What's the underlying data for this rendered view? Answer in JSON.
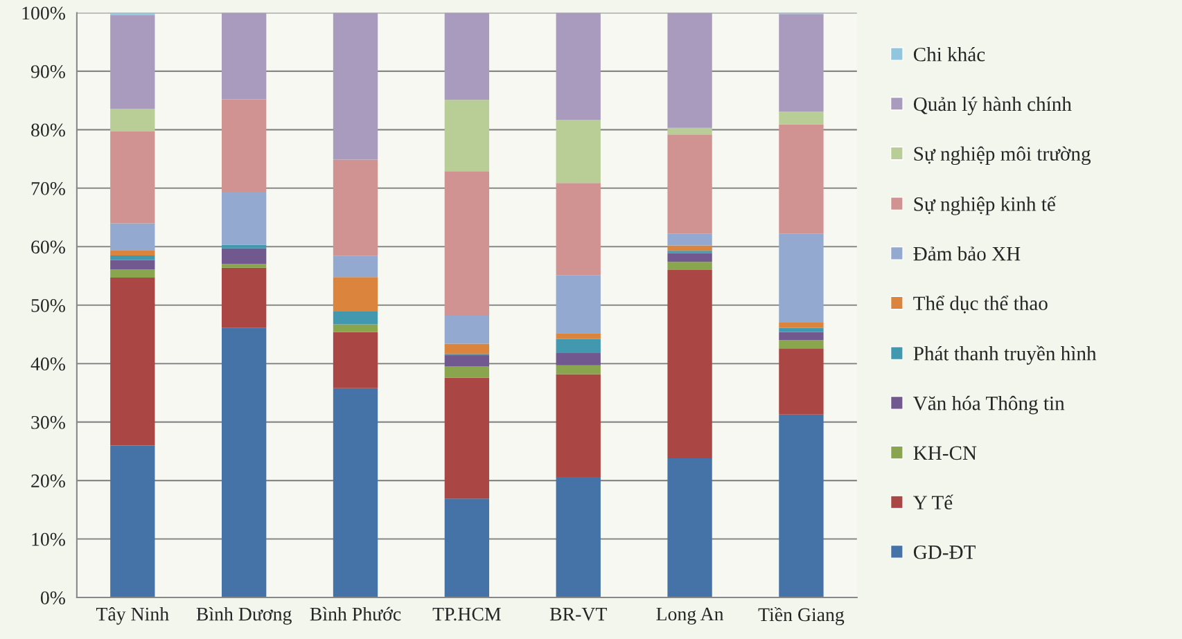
{
  "chart_data": {
    "type": "bar",
    "stacked": true,
    "categories": [
      "Tây Ninh",
      "Bình Dương",
      "Bình Phước",
      "TP.HCM",
      "BR-VT",
      "Long An",
      "Tiền Giang"
    ],
    "series": [
      {
        "name": "GD-ĐT",
        "color": "#4572a7",
        "values": [
          26,
          46.1,
          35.8,
          16.9,
          20.6,
          23.8,
          31.3
        ]
      },
      {
        "name": "Y Tế",
        "color": "#aa4643",
        "values": [
          28.7,
          10.3,
          9.6,
          20.7,
          17.6,
          32.2,
          11.3
        ]
      },
      {
        "name": "KH-CN",
        "color": "#89a54e",
        "values": [
          1.4,
          0.6,
          1.3,
          1.9,
          1.5,
          1.4,
          1.4
        ]
      },
      {
        "name": "Văn hóa Thông tin",
        "color": "#71588f",
        "values": [
          1.6,
          2.7,
          0,
          2.0,
          2.1,
          1.5,
          1.4
        ]
      },
      {
        "name": "Phát thanh truyền hình",
        "color": "#4198af",
        "values": [
          0.8,
          0.6,
          2.2,
          0.2,
          2.4,
          0.4,
          0.7
        ]
      },
      {
        "name": "Thể dục thể thao",
        "color": "#db843d",
        "values": [
          0.9,
          0,
          5.9,
          1.7,
          1.0,
          0.9,
          0.9
        ]
      },
      {
        "name": "Đảm bảo XH",
        "color": "#93a9cf",
        "values": [
          4.6,
          9.1,
          3.6,
          4.8,
          9.9,
          2.0,
          15.2
        ]
      },
      {
        "name": "Sự nghiệp kinh tế",
        "color": "#d19392",
        "values": [
          15.7,
          15.8,
          16.5,
          24.7,
          15.8,
          17.0,
          18.7
        ]
      },
      {
        "name": "Sự nghiệp môi trường",
        "color": "#b9cd96",
        "values": [
          3.9,
          0,
          0,
          12.2,
          10.8,
          1.1,
          2.2
        ]
      },
      {
        "name": "Quản lý hành chính",
        "color": "#a99bbd",
        "values": [
          16.0,
          14.8,
          25.1,
          14.9,
          18.3,
          19.7,
          16.7
        ]
      },
      {
        "name": "Chi khác",
        "color": "#92c5de",
        "values": [
          0.4,
          0,
          0,
          0,
          0,
          0,
          0.2
        ]
      }
    ],
    "ylim": [
      0,
      100
    ],
    "yticks": [
      {
        "value": 0,
        "label": "0%"
      },
      {
        "value": 10,
        "label": "10%"
      },
      {
        "value": 20,
        "label": "20%"
      },
      {
        "value": 30,
        "label": "30%"
      },
      {
        "value": 40,
        "label": "40%"
      },
      {
        "value": 50,
        "label": "50%"
      },
      {
        "value": 60,
        "label": "60%"
      },
      {
        "value": 70,
        "label": "70%"
      },
      {
        "value": 80,
        "label": "80%"
      },
      {
        "value": 90,
        "label": "90%"
      },
      {
        "value": 100,
        "label": "100%"
      }
    ],
    "grid": "y",
    "legend": "right"
  }
}
